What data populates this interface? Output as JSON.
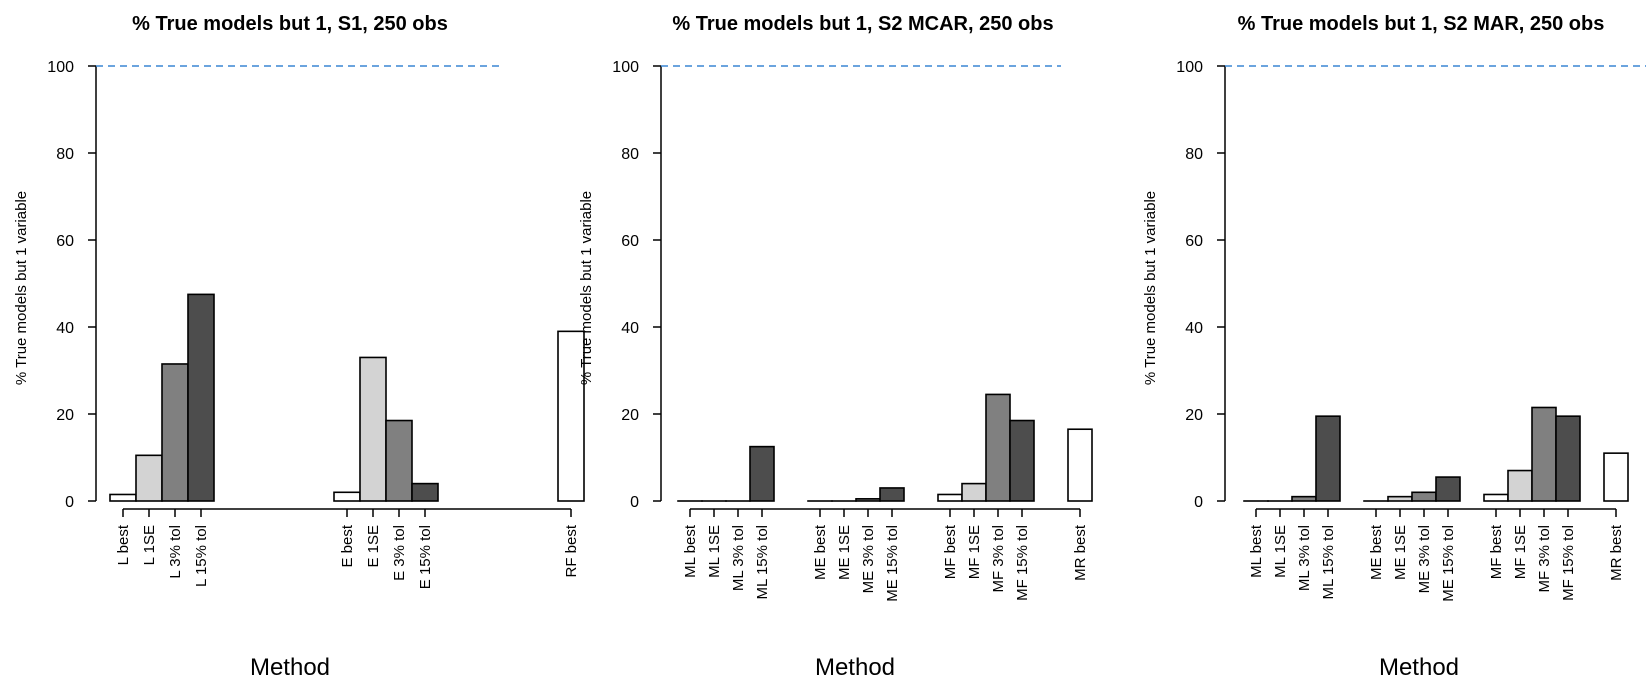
{
  "chart_data": [
    {
      "type": "bar",
      "title": "% True models but 1, S1, 250 obs",
      "xlabel": "Method",
      "ylabel": "% True models but 1  variable",
      "ylim": [
        0,
        100
      ],
      "yticks": [
        0,
        20,
        40,
        60,
        80,
        100
      ],
      "reference_line": 100,
      "groups": [
        {
          "categories": [
            "L best",
            "L 1SE",
            "L 3% tol",
            "L 15% tol"
          ],
          "values": [
            1.5,
            10.5,
            31.5,
            47.5
          ]
        },
        {
          "categories": [
            "E best",
            "E 1SE",
            "E 3% tol",
            "E 15% tol"
          ],
          "values": [
            2,
            33,
            18.5,
            4
          ]
        },
        {
          "categories": [
            "RF best"
          ],
          "values": [
            39
          ]
        }
      ]
    },
    {
      "type": "bar",
      "title": "% True models but 1, S2 MCAR, 250 obs",
      "xlabel": "Method",
      "ylabel": "% True models but 1  variable",
      "ylim": [
        0,
        100
      ],
      "yticks": [
        0,
        20,
        40,
        60,
        80,
        100
      ],
      "reference_line": 100,
      "groups": [
        {
          "categories": [
            "ML best",
            "ML 1SE",
            "ML 3% tol",
            "ML 15% tol"
          ],
          "values": [
            0,
            0,
            0,
            12.5
          ]
        },
        {
          "categories": [
            "ME best",
            "ME 1SE",
            "ME 3% tol",
            "ME 15% tol"
          ],
          "values": [
            0,
            0,
            0.5,
            3
          ]
        },
        {
          "categories": [
            "MF best",
            "MF 1SE",
            "MF 3% tol",
            "MF 15% tol"
          ],
          "values": [
            1.5,
            4,
            24.5,
            18.5
          ]
        },
        {
          "categories": [
            "MR best"
          ],
          "values": [
            16.5
          ]
        }
      ]
    },
    {
      "type": "bar",
      "title": "% True models but 1, S2 MAR, 250 obs",
      "xlabel": "Method",
      "ylabel": "% True models but 1  variable",
      "ylim": [
        0,
        100
      ],
      "yticks": [
        0,
        20,
        40,
        60,
        80,
        100
      ],
      "reference_line": 100,
      "groups": [
        {
          "categories": [
            "ML best",
            "ML 1SE",
            "ML 3% tol",
            "ML 15% tol"
          ],
          "values": [
            0,
            0,
            1,
            19.5
          ]
        },
        {
          "categories": [
            "ME best",
            "ME 1SE",
            "ME 3% tol",
            "ME 15% tol"
          ],
          "values": [
            0,
            1,
            2,
            5.5
          ]
        },
        {
          "categories": [
            "MF best",
            "MF 1SE",
            "MF 3% tol",
            "MF 15% tol"
          ],
          "values": [
            1.5,
            7,
            21.5,
            19.5
          ]
        },
        {
          "categories": [
            "MR best"
          ],
          "values": [
            11
          ]
        }
      ]
    }
  ],
  "colors": {
    "fills": [
      "#ffffff",
      "#d3d3d3",
      "#808080",
      "#4d4d4d"
    ],
    "reference_line": "#3a86d4",
    "axis": "#000000"
  }
}
